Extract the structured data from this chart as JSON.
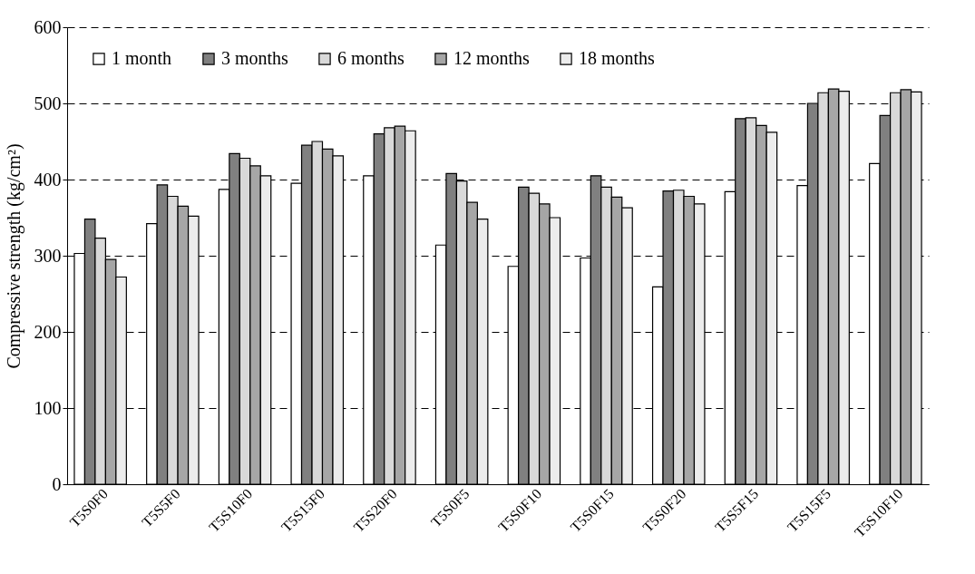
{
  "chart_data": {
    "type": "bar",
    "ylabel": "Compressive strength (kg/cm²)",
    "categories": [
      "T5S0F0",
      "T5S5F0",
      "T5S10F0",
      "T5S15F0",
      "T5S20F0",
      "T5S0F5",
      "T5S0F10",
      "T5S0F15",
      "T5S0F20",
      "T5S5F15",
      "T5S15F5",
      "T5S10F10"
    ],
    "series": [
      {
        "name": "1 month",
        "color": "#ffffff",
        "values": [
          303,
          342,
          387,
          395,
          405,
          314,
          286,
          297,
          259,
          384,
          392,
          421
        ]
      },
      {
        "name": "3 months",
        "color": "#808080",
        "values": [
          348,
          393,
          434,
          445,
          460,
          408,
          390,
          405,
          385,
          480,
          500,
          484
        ]
      },
      {
        "name": "6 months",
        "color": "#d9d9d9",
        "values": [
          323,
          378,
          428,
          450,
          468,
          398,
          382,
          390,
          386,
          481,
          514,
          514
        ]
      },
      {
        "name": "12 months",
        "color": "#a6a6a6",
        "values": [
          295,
          365,
          418,
          440,
          470,
          370,
          368,
          377,
          378,
          471,
          519,
          518
        ]
      },
      {
        "name": "18 months",
        "color": "#ececec",
        "values": [
          272,
          352,
          405,
          431,
          464,
          348,
          350,
          363,
          368,
          462,
          516,
          515
        ]
      }
    ],
    "ylim": [
      0,
      600
    ],
    "yticks": [
      0,
      100,
      200,
      300,
      400,
      500,
      600
    ],
    "grid": "y",
    "legend": "top left"
  }
}
